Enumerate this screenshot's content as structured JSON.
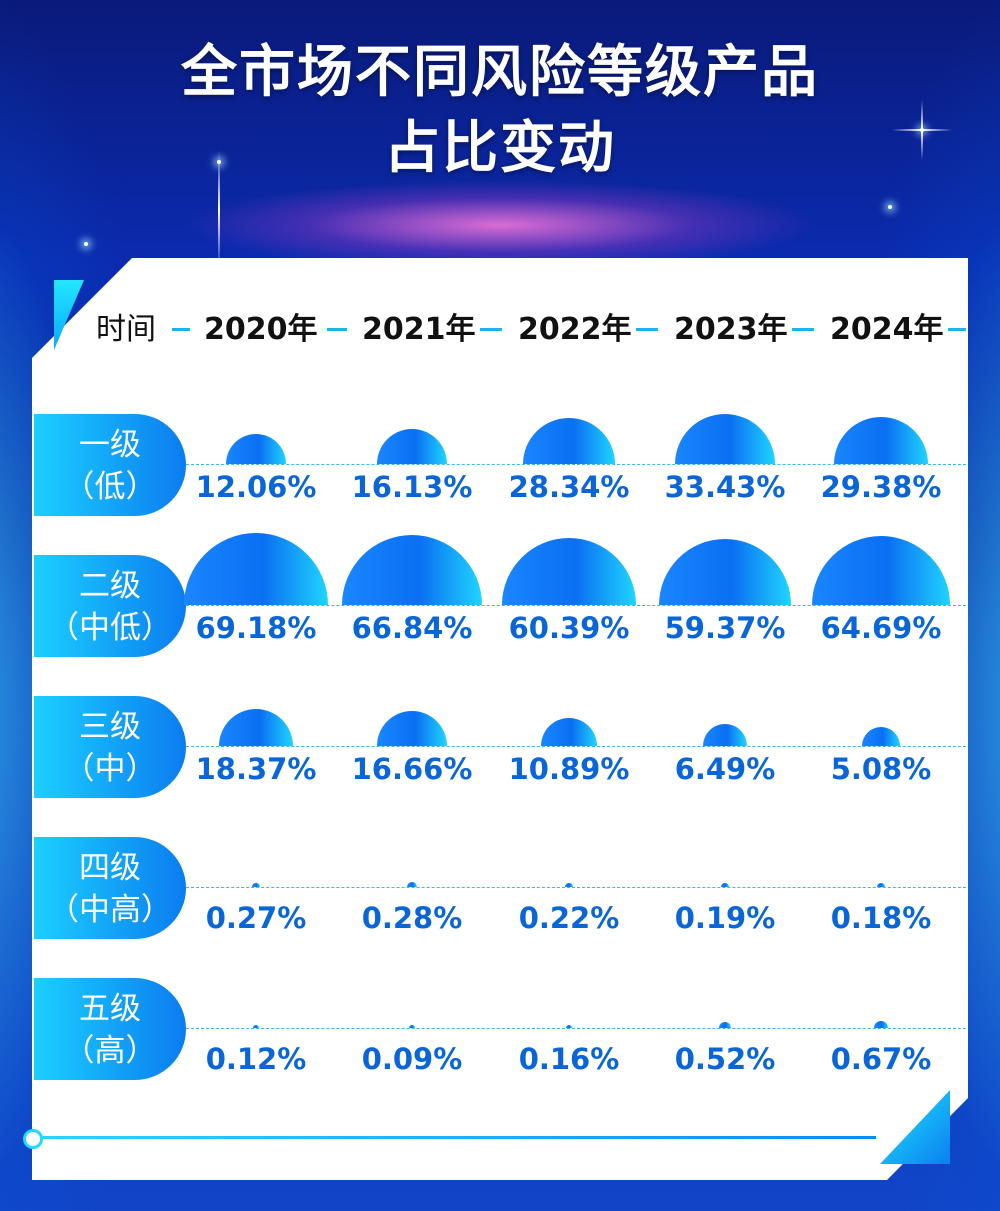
{
  "title_line1": "全市场不同风险等级产品",
  "title_line2": "占比变动",
  "header": {
    "time_label": "时间",
    "years": [
      "2020年",
      "2021年",
      "2022年",
      "2023年",
      "2024年"
    ]
  },
  "colors": {
    "accent": "#0b7cf0",
    "accent_light": "#1bd0ff",
    "value_text": "#0a66d8",
    "background": "#0b2bb0"
  },
  "chart_data": {
    "type": "table",
    "title": "全市场不同风险等级产品占比变动",
    "columns": [
      "2020年",
      "2021年",
      "2022年",
      "2023年",
      "2024年"
    ],
    "rows": [
      {
        "name": "一级",
        "sub": "（低）",
        "values": [
          12.06,
          16.13,
          28.34,
          33.43,
          29.38
        ],
        "labels": [
          "12.06%",
          "16.13%",
          "28.34%",
          "33.43%",
          "29.38%"
        ]
      },
      {
        "name": "二级",
        "sub": "（中低）",
        "values": [
          69.18,
          66.84,
          60.39,
          59.37,
          64.69
        ],
        "labels": [
          "69.18%",
          "66.84%",
          "60.39%",
          "59.37%",
          "64.69%"
        ]
      },
      {
        "name": "三级",
        "sub": "（中）",
        "values": [
          18.37,
          16.66,
          10.89,
          6.49,
          5.08
        ],
        "labels": [
          "18.37%",
          "16.66%",
          "10.89%",
          "6.49%",
          "5.08%"
        ]
      },
      {
        "name": "四级",
        "sub": "（中高）",
        "values": [
          0.27,
          0.28,
          0.22,
          0.19,
          0.18
        ],
        "labels": [
          "0.27%",
          "0.28%",
          "0.22%",
          "0.19%",
          "0.18%"
        ]
      },
      {
        "name": "五级",
        "sub": "（高）",
        "values": [
          0.12,
          0.09,
          0.16,
          0.52,
          0.67
        ],
        "labels": [
          "0.12%",
          "0.09%",
          "0.16%",
          "0.52%",
          "0.67%"
        ]
      }
    ]
  }
}
